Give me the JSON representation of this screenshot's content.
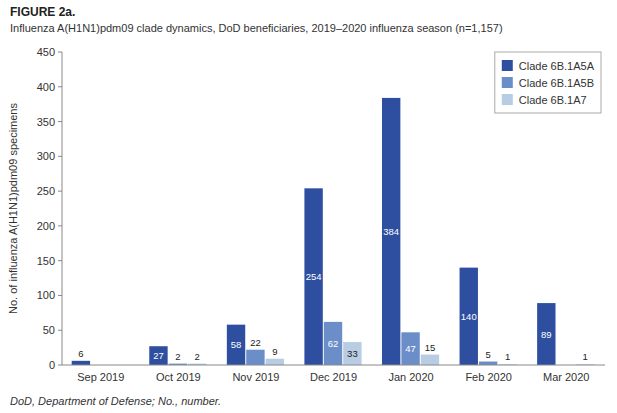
{
  "chart_data": {
    "type": "bar",
    "title": "FIGURE 2a.",
    "subtitle": "Influenza A(H1N1)pdm09 clade dynamics, DoD beneficiaries, 2019–2020 influenza season (n=1,157)",
    "annotations": [
      "DoD, Department of Defense; No., number."
    ],
    "categories": [
      "Sep 2019",
      "Oct 2019",
      "Nov 2019",
      "Dec 2019",
      "Jan 2020",
      "Feb 2020",
      "Mar 2020"
    ],
    "series": [
      {
        "name": "Clade 6B.1A5A",
        "color": "#2E4FA0",
        "values": [
          6,
          27,
          58,
          254,
          384,
          140,
          89
        ]
      },
      {
        "name": "Clade 6B.1A5B",
        "color": "#6B8EC9",
        "values": [
          0,
          2,
          22,
          62,
          47,
          5,
          0
        ]
      },
      {
        "name": "Clade 6B.1A7",
        "color": "#B8CCE4",
        "values": [
          0,
          2,
          9,
          33,
          15,
          1,
          1
        ]
      }
    ],
    "ylabel": "No. of influenza A(H1N1)pdm09 specimens",
    "ylim": [
      0,
      450
    ],
    "yticks": [
      0,
      50,
      100,
      150,
      200,
      250,
      300,
      350,
      400,
      450
    ],
    "grid": false,
    "legend": "upper right",
    "data_labels": true
  }
}
